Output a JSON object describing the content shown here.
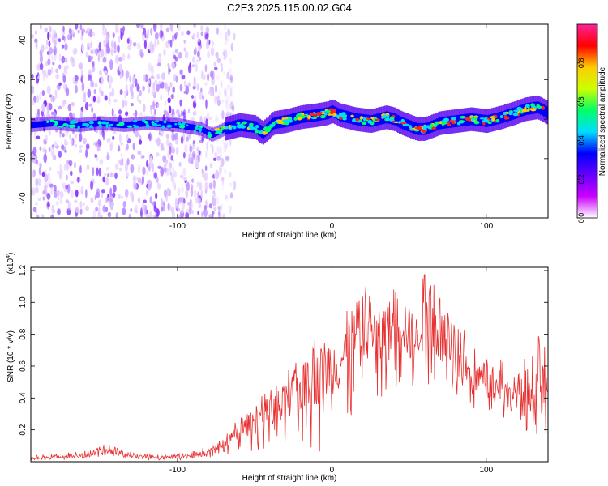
{
  "title": "C2E3.2025.115.00.02.G04",
  "chart_data": [
    {
      "type": "heatmap",
      "xlabel": "Height of straight line (km)",
      "ylabel": "Frequency (Hz)",
      "xlim": [
        -195,
        140
      ],
      "ylim": [
        -50,
        48
      ],
      "x_ticks": [
        -100,
        0,
        100
      ],
      "x_tick_labels": [
        "-100",
        "0",
        "100"
      ],
      "y_ticks": [
        -40,
        -20,
        0,
        20,
        40
      ],
      "y_tick_labels": [
        "-40",
        "-20",
        "0",
        "20",
        "40"
      ],
      "colorbar": {
        "label": "Normalized spectral amplitude",
        "range": [
          0,
          1
        ],
        "ticks": [
          0,
          0.2,
          0.4,
          0.6,
          0.8
        ],
        "tick_labels": [
          "0.0",
          "0.2",
          "0.4",
          "0.6",
          "0.8"
        ],
        "colors": [
          "#ffffff",
          "#cc00ff",
          "#6600ff",
          "#0000ff",
          "#00ddff",
          "#00ff66",
          "#ccff00",
          "#ffcc00",
          "#ff0000",
          "#ff2299"
        ]
      },
      "ridge": {
        "x": [
          -195,
          -180,
          -165,
          -150,
          -135,
          -120,
          -100,
          -85,
          -78,
          -70,
          -60,
          -50,
          -45,
          -38,
          -30,
          -20,
          -10,
          -3,
          0,
          5,
          15,
          25,
          35,
          40,
          45,
          55,
          60,
          70,
          80,
          90,
          100,
          110,
          118,
          125,
          133,
          140
        ],
        "y": [
          -3,
          -2,
          -3,
          -2,
          -3,
          -2,
          -3,
          -5,
          -8,
          -5,
          -3,
          -4,
          -7,
          -2,
          -1,
          1,
          2,
          3,
          4,
          2,
          0,
          -1,
          1,
          0,
          -2,
          -5,
          -5,
          -2,
          -1,
          0,
          -1,
          1,
          3,
          5,
          6,
          3
        ]
      },
      "noise_region_x": [
        -195,
        -75
      ]
    },
    {
      "type": "line",
      "xlabel": "Height of straight line (km)",
      "ylabel": "SNR (10 * v/v)",
      "y_multiplier_label": "(x10",
      "y_multiplier_exp": "4",
      "xlim": [
        -195,
        140
      ],
      "ylim": [
        0,
        1.22
      ],
      "x_ticks": [
        -100,
        0,
        100
      ],
      "x_tick_labels": [
        "-100",
        "0",
        "100"
      ],
      "y_ticks": [
        0.2,
        0.4,
        0.6,
        0.8,
        1.0,
        1.2
      ],
      "y_tick_labels": [
        "0.2",
        "0.4",
        "0.6",
        "0.8",
        "1.0",
        "1.2"
      ],
      "color": "#e83030",
      "series": [
        {
          "x": [
            -195,
            -180,
            -160,
            -145,
            -140,
            -130,
            -120,
            -100,
            -90,
            -80,
            -75,
            -70,
            -65,
            -60,
            -55,
            -50,
            -45,
            -40,
            -35,
            -30,
            -25,
            -20,
            -15,
            -10,
            -5,
            0,
            5,
            10,
            15,
            20,
            25,
            30,
            35,
            40,
            45,
            50,
            55,
            60,
            65,
            70,
            75,
            80,
            85,
            90,
            95,
            100,
            105,
            110,
            115,
            120,
            125,
            130,
            135,
            140
          ],
          "y": [
            0.02,
            0.03,
            0.04,
            0.07,
            0.06,
            0.04,
            0.03,
            0.03,
            0.04,
            0.06,
            0.09,
            0.11,
            0.15,
            0.18,
            0.22,
            0.25,
            0.3,
            0.3,
            0.32,
            0.35,
            0.4,
            0.45,
            0.5,
            0.55,
            0.58,
            0.6,
            0.62,
            0.7,
            0.8,
            0.85,
            0.9,
            0.75,
            0.8,
            0.85,
            0.9,
            0.8,
            0.75,
            1.05,
            0.85,
            0.8,
            0.7,
            0.6,
            0.65,
            0.5,
            0.55,
            0.5,
            0.48,
            0.5,
            0.4,
            0.45,
            0.42,
            0.5,
            0.45,
            0.4
          ],
          "peak": {
            "x": [
              -195,
              -180,
              -160,
              -145,
              -140,
              -130,
              -120,
              -100,
              -90,
              -80,
              -75,
              -70,
              -65,
              -60,
              -55,
              -50,
              -45,
              -40,
              -35,
              -30,
              -25,
              -20,
              -15,
              -10,
              -5,
              0,
              5,
              10,
              15,
              20,
              25,
              30,
              35,
              40,
              45,
              50,
              55,
              60,
              65,
              70,
              75,
              80,
              85,
              90,
              95,
              100,
              105,
              110,
              115,
              120,
              125,
              130,
              135,
              140
            ],
            "y": [
              0.04,
              0.05,
              0.07,
              0.11,
              0.09,
              0.06,
              0.05,
              0.05,
              0.07,
              0.1,
              0.12,
              0.16,
              0.22,
              0.28,
              0.3,
              0.37,
              0.42,
              0.44,
              0.55,
              0.52,
              0.67,
              0.62,
              0.65,
              0.8,
              0.78,
              0.8,
              0.85,
              0.95,
              1.1,
              1.15,
              1.18,
              1.02,
              1.15,
              1.12,
              1.15,
              1.1,
              1.0,
              1.22,
              1.15,
              1.1,
              0.95,
              0.85,
              0.88,
              0.72,
              0.7,
              0.65,
              0.62,
              0.68,
              0.55,
              0.58,
              0.7,
              0.75,
              0.8,
              0.72
            ]
          },
          "floor": {
            "x": [
              -195,
              -180,
              -160,
              -145,
              -140,
              -130,
              -120,
              -100,
              -90,
              -80,
              -75,
              -70,
              -65,
              -60,
              -55,
              -50,
              -45,
              -40,
              -35,
              -30,
              -25,
              -20,
              -15,
              -10,
              -5,
              0,
              5,
              10,
              15,
              20,
              25,
              30,
              35,
              40,
              45,
              50,
              55,
              60,
              65,
              70,
              75,
              80,
              85,
              90,
              95,
              100,
              105,
              110,
              115,
              120,
              125,
              130,
              135,
              140
            ],
            "y": [
              0.01,
              0.01,
              0.02,
              0.02,
              0.02,
              0.01,
              0.01,
              0.01,
              0.02,
              0.02,
              0.03,
              0.04,
              0.05,
              0.06,
              0.06,
              0.07,
              0.08,
              0.08,
              0.05,
              0.03,
              0.05,
              0.1,
              0.1,
              0.05,
              0.08,
              0.15,
              0.2,
              0.25,
              0.3,
              0.4,
              0.45,
              0.35,
              0.4,
              0.45,
              0.5,
              0.45,
              0.4,
              0.45,
              0.45,
              0.4,
              0.4,
              0.4,
              0.4,
              0.35,
              0.3,
              0.3,
              0.3,
              0.25,
              0.22,
              0.18,
              0.15,
              0.12,
              0.12,
              0.1
            ]
          }
        }
      ]
    }
  ]
}
